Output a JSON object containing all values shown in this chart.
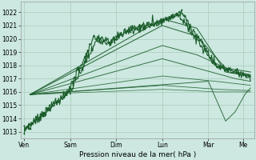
{
  "background_color": "#cce8e0",
  "grid_color": "#aaccbb",
  "line_color": "#1a5c2a",
  "xlabel_text": "Pression niveau de la mer( hPa )",
  "x_ticks_labels": [
    "Ven",
    "Sam",
    "Dim",
    "Lun",
    "Mar",
    "Me"
  ],
  "x_ticks_pos": [
    0,
    24,
    48,
    72,
    96,
    114
  ],
  "ylim": [
    1012.5,
    1022.8
  ],
  "xlim": [
    -2,
    120
  ],
  "yticks": [
    1013,
    1014,
    1015,
    1016,
    1017,
    1018,
    1019,
    1020,
    1021,
    1022
  ],
  "tick_fontsize": 5.5,
  "xlabel_fontsize": 6.5
}
